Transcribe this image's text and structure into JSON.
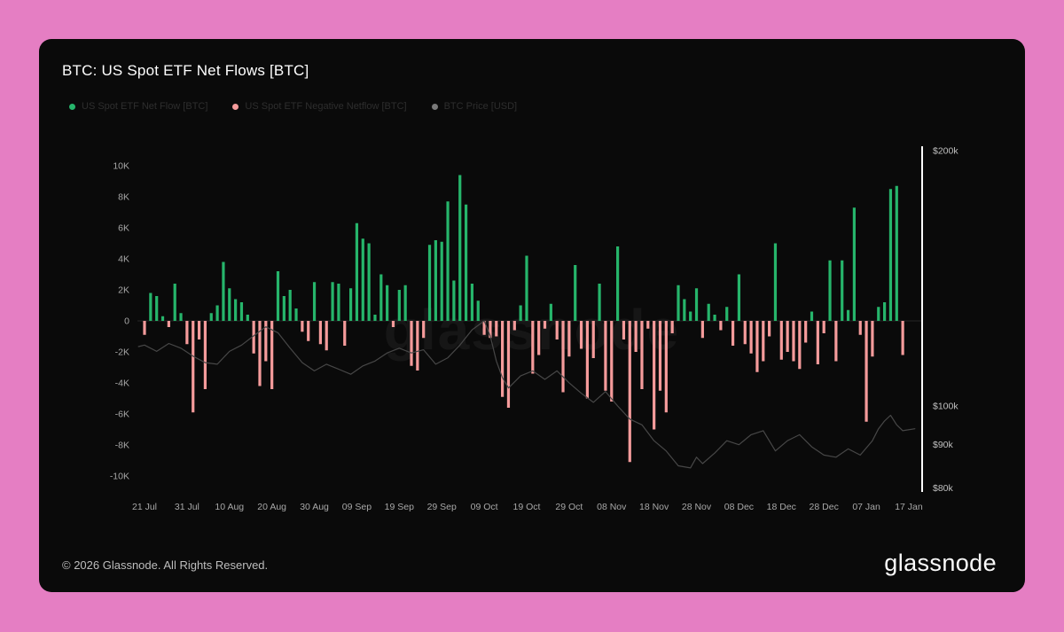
{
  "page": {
    "background": "#e57ec3",
    "card_background": "#0a0a0a"
  },
  "header": {
    "title": "BTC: US Spot ETF Net Flows [BTC]"
  },
  "legend": {
    "items": [
      {
        "label": "US Spot ETF Net Flow [BTC]",
        "color": "#26b56b"
      },
      {
        "label": "US Spot ETF Negative Netflow [BTC]",
        "color": "#f59b9b"
      },
      {
        "label": "BTC Price [USD]",
        "color": "#7a7a7a"
      }
    ]
  },
  "watermark": "glassnode",
  "footer": {
    "copyright": "© 2026 Glassnode. All Rights Reserved.",
    "brand": "glassnode"
  },
  "chart_data": {
    "type": "bar",
    "title": "BTC: US Spot ETF Net Flows [BTC]",
    "unit_left": "BTC net flow (thousands)",
    "unit_right": "BTC price (USD)",
    "grid": false,
    "legend_position": "top-left",
    "x_tick_labels": [
      "21 Jul",
      "31 Jul",
      "10 Aug",
      "20 Aug",
      "30 Aug",
      "09 Sep",
      "19 Sep",
      "29 Sep",
      "09 Oct",
      "19 Oct",
      "29 Oct",
      "08 Nov",
      "18 Nov",
      "28 Nov",
      "08 Dec",
      "18 Dec",
      "28 Dec",
      "07 Jan",
      "17 Jan"
    ],
    "x_ticks_every_n_bars": 7,
    "y_left": {
      "labels": [
        "10K",
        "8K",
        "6K",
        "4K",
        "2K",
        "0",
        "-2K",
        "-4K",
        "-6K",
        "-8K",
        "-10K"
      ],
      "values": [
        10000,
        8000,
        6000,
        4000,
        2000,
        0,
        -2000,
        -4000,
        -6000,
        -8000,
        -10000
      ],
      "range": [
        -11000,
        11250
      ]
    },
    "y_right": {
      "labels": [
        "$200k",
        "$100k",
        "$90k",
        "$80k"
      ],
      "values_usd_k": [
        200,
        100,
        90,
        80
      ],
      "scale": "log"
    },
    "bar_colors": {
      "positive": "#26b56b",
      "negative": "#f59b9b"
    },
    "line_color": "#474747",
    "series": [
      {
        "name": "US Spot ETF Net Flow [BTC]",
        "type": "bar"
      },
      {
        "name": "BTC Price [USD]",
        "type": "line"
      }
    ],
    "net_flows_k_btc": [
      -0.9,
      1.8,
      1.6,
      0.3,
      -0.4,
      2.4,
      0.5,
      -1.5,
      -5.9,
      -1.2,
      -4.4,
      0.5,
      1.0,
      3.8,
      2.1,
      1.4,
      1.2,
      0.4,
      -2.1,
      -4.2,
      -2.6,
      -4.4,
      3.2,
      1.6,
      2.0,
      0.8,
      -0.7,
      -1.3,
      2.5,
      -1.5,
      -1.9,
      2.5,
      2.4,
      -1.6,
      2.1,
      6.3,
      5.3,
      5.0,
      0.4,
      3.0,
      2.3,
      -0.4,
      2.0,
      2.3,
      -2.9,
      -3.2,
      -1.1,
      4.9,
      5.2,
      5.1,
      7.7,
      2.6,
      9.4,
      7.5,
      2.4,
      1.3,
      -0.9,
      -1.1,
      -1.0,
      -4.9,
      -5.6,
      -0.6,
      1.0,
      4.2,
      -3.4,
      -2.2,
      -0.5,
      1.1,
      -1.2,
      -4.6,
      -2.3,
      3.6,
      -1.8,
      -5.0,
      -2.4,
      2.4,
      -4.5,
      -5.2,
      4.8,
      -1.2,
      -9.1,
      -2.0,
      -4.4,
      -0.5,
      -7.0,
      -4.5,
      -5.9,
      -0.8,
      2.3,
      1.4,
      0.6,
      2.1,
      -1.1,
      1.1,
      0.4,
      -0.6,
      0.9,
      -1.6,
      3.0,
      -1.5,
      -2.1,
      -3.3,
      -2.6,
      -1.0,
      5.0,
      -2.5,
      -2.0,
      -2.6,
      -3.1,
      -1.4,
      0.6,
      -2.8,
      -0.8,
      3.9,
      -2.6,
      3.9,
      0.7,
      7.3,
      -0.9,
      -6.5,
      -2.3,
      0.9,
      1.2,
      8.5,
      8.7,
      -2.2
    ],
    "price_points_day_usd_k": [
      [
        -1,
        117.5
      ],
      [
        0,
        118
      ],
      [
        2,
        116
      ],
      [
        4,
        118.5
      ],
      [
        6,
        117
      ],
      [
        8,
        114.5
      ],
      [
        10,
        112.5
      ],
      [
        12,
        112
      ],
      [
        14,
        116
      ],
      [
        16,
        118
      ],
      [
        18,
        121
      ],
      [
        20,
        124
      ],
      [
        22,
        122
      ],
      [
        24,
        117
      ],
      [
        26,
        112.5
      ],
      [
        28,
        110
      ],
      [
        30,
        112
      ],
      [
        32,
        110.5
      ],
      [
        34,
        109
      ],
      [
        36,
        111.5
      ],
      [
        38,
        113
      ],
      [
        40,
        115.5
      ],
      [
        42,
        117
      ],
      [
        44,
        115.5
      ],
      [
        46,
        116.5
      ],
      [
        48,
        112
      ],
      [
        50,
        114
      ],
      [
        52,
        118
      ],
      [
        54,
        123
      ],
      [
        56,
        126
      ],
      [
        57,
        121
      ],
      [
        58,
        113
      ],
      [
        59,
        108
      ],
      [
        60,
        105
      ],
      [
        62,
        108.5
      ],
      [
        64,
        110
      ],
      [
        66,
        107.5
      ],
      [
        68,
        110
      ],
      [
        70,
        106.5
      ],
      [
        72,
        103.5
      ],
      [
        74,
        101
      ],
      [
        76,
        104
      ],
      [
        78,
        100
      ],
      [
        80,
        96.5
      ],
      [
        82,
        95
      ],
      [
        84,
        91
      ],
      [
        86,
        88.5
      ],
      [
        88,
        85
      ],
      [
        90,
        84.5
      ],
      [
        91,
        87
      ],
      [
        92,
        85.5
      ],
      [
        94,
        88
      ],
      [
        96,
        91
      ],
      [
        98,
        90
      ],
      [
        100,
        92.5
      ],
      [
        102,
        93.5
      ],
      [
        104,
        88.5
      ],
      [
        106,
        91
      ],
      [
        108,
        92.5
      ],
      [
        110,
        89.5
      ],
      [
        112,
        87.5
      ],
      [
        114,
        87
      ],
      [
        116,
        89
      ],
      [
        118,
        87.5
      ],
      [
        120,
        91
      ],
      [
        121,
        94
      ],
      [
        122,
        96
      ],
      [
        123,
        97.5
      ],
      [
        124,
        95
      ],
      [
        125,
        93.5
      ],
      [
        127,
        94
      ]
    ]
  }
}
